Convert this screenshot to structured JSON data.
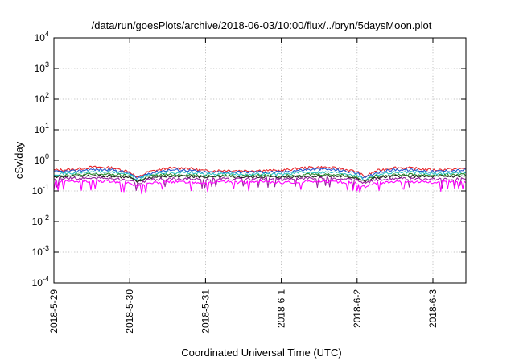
{
  "chart_data": {
    "type": "area",
    "title": "/data/run/goesPlots/archive/2018-06-03/10:00/flux/../bryn/5daysMoon.plot",
    "xlabel": "Coordinated Universal Time (UTC)",
    "ylabel": "cSv/day",
    "yscale": "log",
    "ylim": [
      0.0001,
      10000
    ],
    "y_ticks": [
      {
        "value": 0.0001,
        "mantissa": "10",
        "exp": "-4"
      },
      {
        "value": 0.001,
        "mantissa": "10",
        "exp": "-3"
      },
      {
        "value": 0.01,
        "mantissa": "10",
        "exp": "-2"
      },
      {
        "value": 0.1,
        "mantissa": "10",
        "exp": "-1"
      },
      {
        "value": 1,
        "mantissa": "10",
        "exp": "0"
      },
      {
        "value": 10,
        "mantissa": "10",
        "exp": "1"
      },
      {
        "value": 100,
        "mantissa": "10",
        "exp": "2"
      },
      {
        "value": 1000,
        "mantissa": "10",
        "exp": "3"
      },
      {
        "value": 10000,
        "mantissa": "10",
        "exp": "4"
      }
    ],
    "xlim": [
      "2018-05-29",
      "2018-06-03 10:00"
    ],
    "x_ticks": [
      "2018-5-29",
      "2018-5-30",
      "2018-5-31",
      "2018-6-1",
      "2018-6-2",
      "2018-6-3"
    ],
    "grid": true,
    "sample_days": [
      0,
      0.25,
      0.5,
      0.75,
      1.0,
      1.1,
      1.25,
      1.5,
      1.75,
      2.0,
      2.25,
      2.5,
      2.75,
      3.0,
      3.25,
      3.5,
      3.75,
      4.0,
      4.1,
      4.25,
      4.5,
      4.75,
      5.0,
      5.25,
      5.43
    ],
    "series": [
      {
        "color": "#e8262a",
        "values": [
          0.48,
          0.5,
          0.6,
          0.58,
          0.42,
          0.26,
          0.42,
          0.55,
          0.56,
          0.45,
          0.47,
          0.46,
          0.47,
          0.46,
          0.56,
          0.6,
          0.55,
          0.42,
          0.28,
          0.45,
          0.58,
          0.55,
          0.48,
          0.52,
          0.55
        ]
      },
      {
        "color": "#2255cc",
        "values": [
          0.42,
          0.44,
          0.5,
          0.5,
          0.38,
          0.24,
          0.38,
          0.48,
          0.48,
          0.4,
          0.42,
          0.41,
          0.42,
          0.41,
          0.48,
          0.52,
          0.48,
          0.38,
          0.25,
          0.4,
          0.5,
          0.48,
          0.43,
          0.46,
          0.48
        ]
      },
      {
        "color": "#2ec4c4",
        "values": [
          0.36,
          0.38,
          0.42,
          0.42,
          0.34,
          0.22,
          0.34,
          0.4,
          0.4,
          0.35,
          0.36,
          0.35,
          0.36,
          0.35,
          0.4,
          0.42,
          0.4,
          0.33,
          0.23,
          0.34,
          0.41,
          0.4,
          0.36,
          0.38,
          0.4
        ]
      },
      {
        "color": "#2b8a2b",
        "values": [
          0.32,
          0.33,
          0.35,
          0.35,
          0.3,
          0.2,
          0.3,
          0.34,
          0.34,
          0.31,
          0.32,
          0.31,
          0.32,
          0.31,
          0.34,
          0.35,
          0.34,
          0.29,
          0.21,
          0.3,
          0.34,
          0.34,
          0.32,
          0.33,
          0.34
        ]
      },
      {
        "color": "#222222",
        "values": [
          0.29,
          0.3,
          0.31,
          0.31,
          0.27,
          0.19,
          0.27,
          0.3,
          0.3,
          0.28,
          0.29,
          0.28,
          0.29,
          0.28,
          0.3,
          0.31,
          0.3,
          0.27,
          0.2,
          0.27,
          0.3,
          0.3,
          0.29,
          0.3,
          0.3
        ]
      },
      {
        "color": "#9a1fa0",
        "values": [
          0.25,
          0.26,
          0.26,
          0.26,
          0.23,
          0.17,
          0.23,
          0.25,
          0.25,
          0.24,
          0.25,
          0.24,
          0.25,
          0.24,
          0.25,
          0.26,
          0.25,
          0.23,
          0.18,
          0.23,
          0.25,
          0.25,
          0.24,
          0.25,
          0.25
        ]
      },
      {
        "color": "#ff00ff",
        "values": [
          0.2,
          0.21,
          0.21,
          0.21,
          0.18,
          0.14,
          0.18,
          0.2,
          0.2,
          0.19,
          0.2,
          0.19,
          0.2,
          0.19,
          0.2,
          0.21,
          0.2,
          0.18,
          0.13,
          0.18,
          0.2,
          0.2,
          0.19,
          0.2,
          0.2
        ]
      }
    ]
  }
}
